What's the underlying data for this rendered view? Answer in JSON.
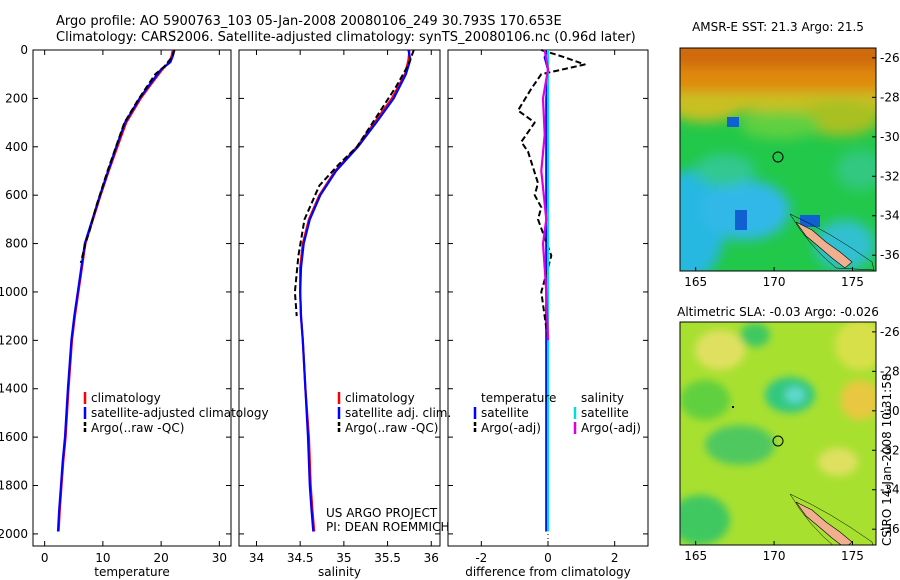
{
  "header": {
    "line1": "Argo profile: AO 5900763_103 05-Jan-2008 20080106_249 30.793S 170.653E",
    "line2": "Climatology: CARS2006. Satellite-adjusted climatology: synTS_20080106.nc (0.96d later)"
  },
  "colors": {
    "climatology": "#ff0000",
    "satellite_adj": "#0000ff",
    "argo": "#000000",
    "sal_satellite": "#00dddd",
    "sal_argo": "#dd00dd"
  },
  "chart_data": [
    {
      "type": "line",
      "id": "temperature",
      "xlabel": "temperature",
      "xlim": [
        -2,
        32
      ],
      "xticks": [
        0,
        10,
        20,
        30
      ],
      "ylim": [
        0,
        2050
      ],
      "yreversed": true,
      "yticks": [
        0,
        200,
        400,
        600,
        800,
        1000,
        1200,
        1400,
        1600,
        1800,
        2000
      ],
      "legend": [
        "climatology",
        "satellite-adjusted climatology",
        "Argo(..raw -QC)"
      ],
      "series": [
        {
          "name": "climatology",
          "color": "#ff0000",
          "style": "solid",
          "x": [
            22.0,
            21.8,
            21.4,
            20.2,
            18.0,
            16.5,
            14.0,
            12.5,
            11.0,
            9.6,
            8.3,
            7.0,
            6.4,
            5.8,
            5.2,
            4.7,
            4.1,
            3.6,
            3.2,
            2.9,
            2.6,
            2.4
          ],
          "y": [
            0,
            25,
            50,
            80,
            150,
            200,
            300,
            400,
            500,
            600,
            700,
            800,
            900,
            1000,
            1100,
            1200,
            1400,
            1600,
            1700,
            1800,
            1900,
            1990
          ]
        },
        {
          "name": "satellite-adjusted climatology",
          "color": "#0000ff",
          "style": "solid",
          "x": [
            22.2,
            22.0,
            21.6,
            20.0,
            17.8,
            16.3,
            13.8,
            12.3,
            10.9,
            9.5,
            8.2,
            6.9,
            6.3,
            5.7,
            5.1,
            4.6,
            4.0,
            3.5,
            3.1,
            2.8,
            2.5,
            2.3
          ],
          "y": [
            0,
            25,
            50,
            80,
            150,
            200,
            300,
            400,
            500,
            600,
            700,
            800,
            900,
            1000,
            1100,
            1200,
            1400,
            1600,
            1700,
            1800,
            1900,
            1990
          ]
        },
        {
          "name": "Argo(..raw -QC)",
          "color": "#000000",
          "style": "dash",
          "x": [
            22.3,
            22.0,
            20.5,
            19.0,
            16.2,
            13.7,
            10.8,
            8.8,
            7.8,
            7.0,
            6.2
          ],
          "y": [
            0,
            25,
            70,
            100,
            200,
            300,
            500,
            650,
            740,
            800,
            880
          ]
        }
      ]
    },
    {
      "type": "line",
      "id": "salinity",
      "xlabel": "salinity",
      "xlim": [
        33.8,
        36.1
      ],
      "xticks": [
        34,
        34.5,
        35,
        35.5,
        36
      ],
      "ylim": [
        0,
        2050
      ],
      "yreversed": true,
      "legend": [
        "climatology",
        "satellite adj. clim.",
        "Argo(..raw -QC)"
      ],
      "series": [
        {
          "name": "climatology",
          "color": "#ff0000",
          "style": "solid",
          "x": [
            35.75,
            35.74,
            35.7,
            35.55,
            35.35,
            35.15,
            34.9,
            34.72,
            34.6,
            34.53,
            34.5,
            34.5,
            34.51,
            34.53,
            34.56,
            34.6,
            34.62,
            34.64,
            34.66
          ],
          "y": [
            0,
            40,
            100,
            200,
            300,
            400,
            500,
            600,
            700,
            800,
            900,
            1000,
            1100,
            1200,
            1400,
            1600,
            1800,
            1900,
            1990
          ]
        },
        {
          "name": "satellite adj. clim.",
          "color": "#0000ff",
          "style": "solid",
          "x": [
            35.74,
            35.76,
            35.71,
            35.57,
            35.37,
            35.16,
            34.91,
            34.73,
            34.61,
            34.54,
            34.51,
            34.5,
            34.51,
            34.53,
            34.56,
            34.59,
            34.61,
            34.63,
            34.65
          ],
          "y": [
            0,
            40,
            100,
            200,
            300,
            400,
            500,
            600,
            700,
            800,
            900,
            1000,
            1100,
            1200,
            1400,
            1600,
            1800,
            1900,
            1990
          ]
        },
        {
          "name": "Argo(..raw -QC)",
          "color": "#000000",
          "style": "dash",
          "x": [
            35.8,
            35.74,
            35.6,
            35.42,
            35.15,
            34.95,
            34.72,
            34.55,
            34.48,
            34.44,
            34.46
          ],
          "y": [
            0,
            60,
            150,
            250,
            400,
            470,
            560,
            700,
            850,
            1000,
            1100
          ]
        }
      ]
    },
    {
      "type": "line",
      "id": "difference",
      "xlabel": "difference from climatology",
      "xlim": [
        -3,
        3
      ],
      "xticks": [
        -2,
        0,
        2
      ],
      "ylim": [
        0,
        2050
      ],
      "yreversed": true,
      "legend_columns": [
        {
          "title": "temperature",
          "entries": [
            "satellite",
            "Argo(-adj)"
          ]
        },
        {
          "title": "salinity",
          "entries": [
            "satellite",
            "Argo(-adj)"
          ]
        }
      ],
      "series": [
        {
          "name": "temperature satellite",
          "color": "#0000ff",
          "style": "solid",
          "x": [
            0.0,
            -0.1,
            0.0,
            -0.05,
            -0.05,
            -0.05,
            -0.05,
            -0.05,
            -0.05
          ],
          "y": [
            0,
            30,
            80,
            200,
            600,
            1000,
            1400,
            1800,
            1990
          ]
        },
        {
          "name": "temperature Argo(-adj)",
          "color": "#000000",
          "style": "dash",
          "x": [
            -0.2,
            0.5,
            1.1,
            -0.2,
            -0.5,
            -0.9,
            -0.4,
            -0.8,
            -0.6,
            -0.3,
            -0.4,
            -0.2,
            -0.3,
            0.1,
            -0.2,
            0.0
          ],
          "y": [
            0,
            30,
            60,
            100,
            160,
            250,
            300,
            380,
            420,
            550,
            600,
            650,
            700,
            850,
            1000,
            1200
          ]
        },
        {
          "name": "salinity satellite",
          "color": "#00dddd",
          "style": "solid",
          "x": [
            0.0,
            0.0,
            0.0,
            0.0,
            0.0
          ],
          "y": [
            0,
            200,
            800,
            1400,
            1990
          ]
        },
        {
          "name": "salinity Argo(-adj)",
          "color": "#dd00dd",
          "style": "solid",
          "x": [
            -0.1,
            0.0,
            -0.15,
            -0.1,
            -0.2,
            -0.05,
            -0.15,
            -0.1,
            -0.05,
            0.0
          ],
          "y": [
            0,
            80,
            200,
            350,
            500,
            700,
            800,
            900,
            1000,
            1200
          ]
        }
      ]
    },
    {
      "type": "heatmap",
      "id": "sst-map",
      "title": "AMSR-E SST: 21.3 Argo: 21.5",
      "xticks": [
        165,
        170,
        175
      ],
      "xlim": [
        164,
        176.5
      ],
      "yticks": [
        -26,
        -28,
        -30,
        -32,
        -34,
        -36
      ],
      "ylim": [
        -36.8,
        -25.5
      ],
      "argo_position": {
        "lon": 170.653,
        "lat": -30.793
      }
    },
    {
      "type": "heatmap",
      "id": "sla-map",
      "title": "Altimetric SLA: -0.03 Argo: -0.026",
      "xticks": [
        165,
        170,
        175
      ],
      "xlim": [
        164,
        176.5
      ],
      "yticks": [
        -26,
        -28,
        -30,
        -32,
        -34,
        -36
      ],
      "ylim": [
        -36.8,
        -25.5
      ],
      "argo_position": {
        "lon": 170.653,
        "lat": -30.793
      }
    }
  ],
  "credit": {
    "line1": "US ARGO PROJECT",
    "line2": "PI: DEAN ROEMMICH"
  },
  "timestamp": "CSIRO 14-Jan-2008 10:31:58"
}
